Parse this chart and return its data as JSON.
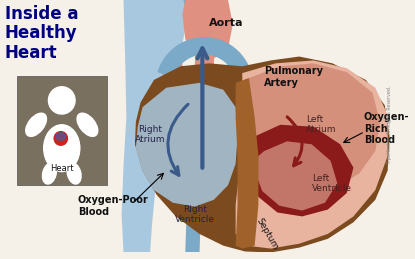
{
  "bg_color": "#f5f0e8",
  "title_text": "Inside a\nHealthy\nHeart",
  "title_color": "#000080",
  "title_fontsize": 12,
  "labels": {
    "aorta": "Aorta",
    "pulmonary_artery": "Pulmonary\nArtery",
    "left_atrium": "Left\nAtrium",
    "left_ventricle": "Left\nVentricle",
    "right_atrium": "Right\nAtrium",
    "right_ventricle": "Right\nVentricle",
    "septum": "Septum",
    "oxygen_rich": "Oxygen-\nRich\nBlood",
    "oxygen_poor": "Oxygen-Poor\nBlood",
    "heart_label": "Heart"
  },
  "label_fontsize": 7,
  "heart_brown": "#7B4A1E",
  "heart_brown_light": "#A0622A",
  "heart_pink_light": "#E8B4A0",
  "heart_pink": "#D4907A",
  "heart_red_dark": "#8B1A1A",
  "heart_red_medium": "#C06060",
  "aorta_pink": "#E09080",
  "blue_vessel_light": "#A8C8E0",
  "blue_vessel_mid": "#7AAAC8",
  "blue_vessel_dark": "#3A5A8A",
  "silhouette_bg": "#7A7060",
  "silhouette_fg": "#FFFFFF",
  "copyright_color": "#888888"
}
